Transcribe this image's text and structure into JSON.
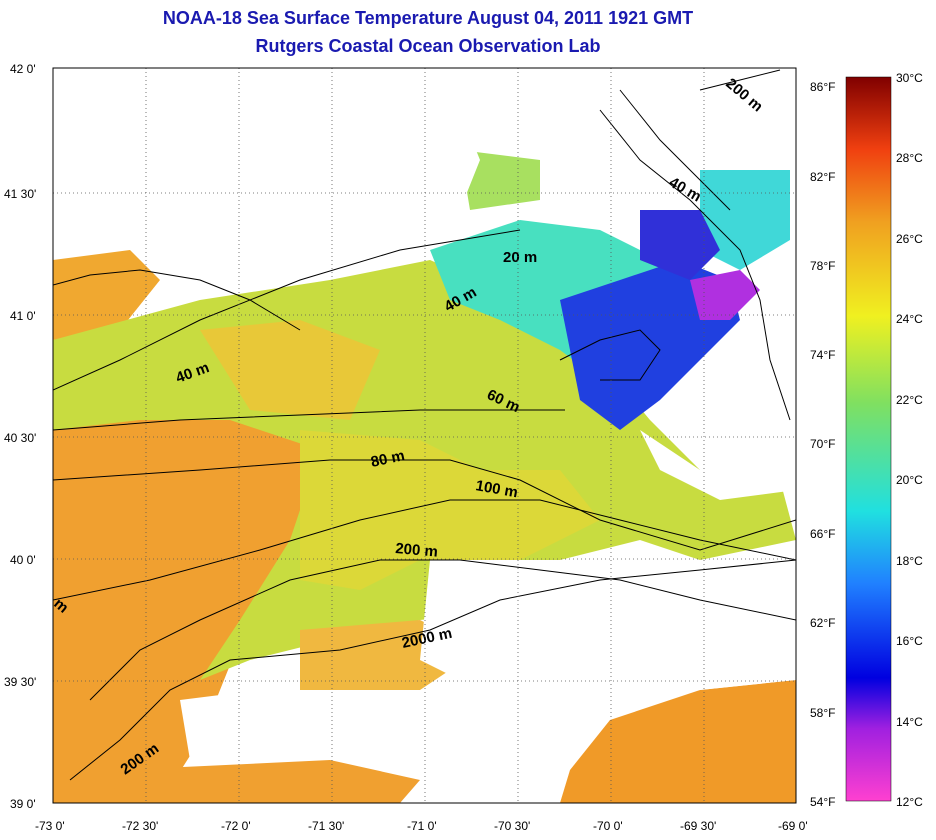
{
  "title_line1": "NOAA-18 Sea Surface Temperature August 04, 2011 1921 GMT",
  "title_line2": "Rutgers Coastal Ocean Observation Lab",
  "lat_labels": [
    "42 0'",
    "41 30'",
    "41 0'",
    "40 30'",
    "40 0'",
    "39 30'",
    "39 0'"
  ],
  "lon_labels": [
    "-73 0'",
    "-72 30'",
    "-72 0'",
    "-71 30'",
    "-71 0'",
    "-70 30'",
    "-70 0'",
    "-69 30'",
    "-69 0'"
  ],
  "fahrenheit_labels": [
    "86°F",
    "82°F",
    "78°F",
    "74°F",
    "70°F",
    "66°F",
    "62°F",
    "58°F",
    "54°F"
  ],
  "celsius_labels": [
    "30°C",
    "28°C",
    "26°C",
    "24°C",
    "22°C",
    "20°C",
    "18°C",
    "16°C",
    "14°C",
    "12°C"
  ],
  "contour_labels": {
    "c20a": "20 m",
    "c40a": "40 m",
    "c40b": "40 m",
    "c40c": "40 m",
    "c60": "60 m",
    "c80": "80 m",
    "c100": "100 m",
    "c200a": "200 m",
    "c200b": "200 m",
    "c200c": "200 m",
    "c2000": "2000 m",
    "cedge": "m"
  },
  "colors": {
    "title": "#1a1ab0",
    "land": "#ffffff",
    "warm": "#f0a020",
    "mid": "#c8e03a",
    "cool": "#40e0c8",
    "cold": "#1a2ae0",
    "coldest": "#c020e0"
  }
}
